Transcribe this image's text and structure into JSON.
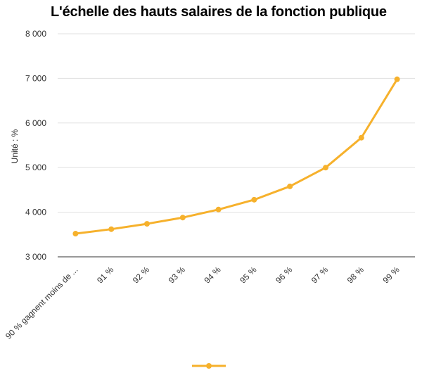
{
  "chart_data": {
    "type": "line",
    "title": "L'échelle des hauts salaires de la fonction publique",
    "ylabel": "Unité : %",
    "xlabel": "",
    "categories": [
      "90 % gagnent moins de ...",
      "91 %",
      "92 %",
      "93 %",
      "94 %",
      "95 %",
      "96 %",
      "97 %",
      "98 %",
      "99 %"
    ],
    "series": [
      {
        "values": [
          3520,
          3620,
          3740,
          3880,
          4060,
          4280,
          4580,
          5000,
          5670,
          6980
        ]
      }
    ],
    "ylim": [
      3000,
      8000
    ],
    "yticks": [
      3000,
      4000,
      5000,
      6000,
      7000,
      8000
    ],
    "ytick_labels": [
      "3 000",
      "4 000",
      "5 000",
      "6 000",
      "7 000",
      "8 000"
    ],
    "grid": true,
    "legend": "bottom",
    "color": "#f6b12c"
  }
}
